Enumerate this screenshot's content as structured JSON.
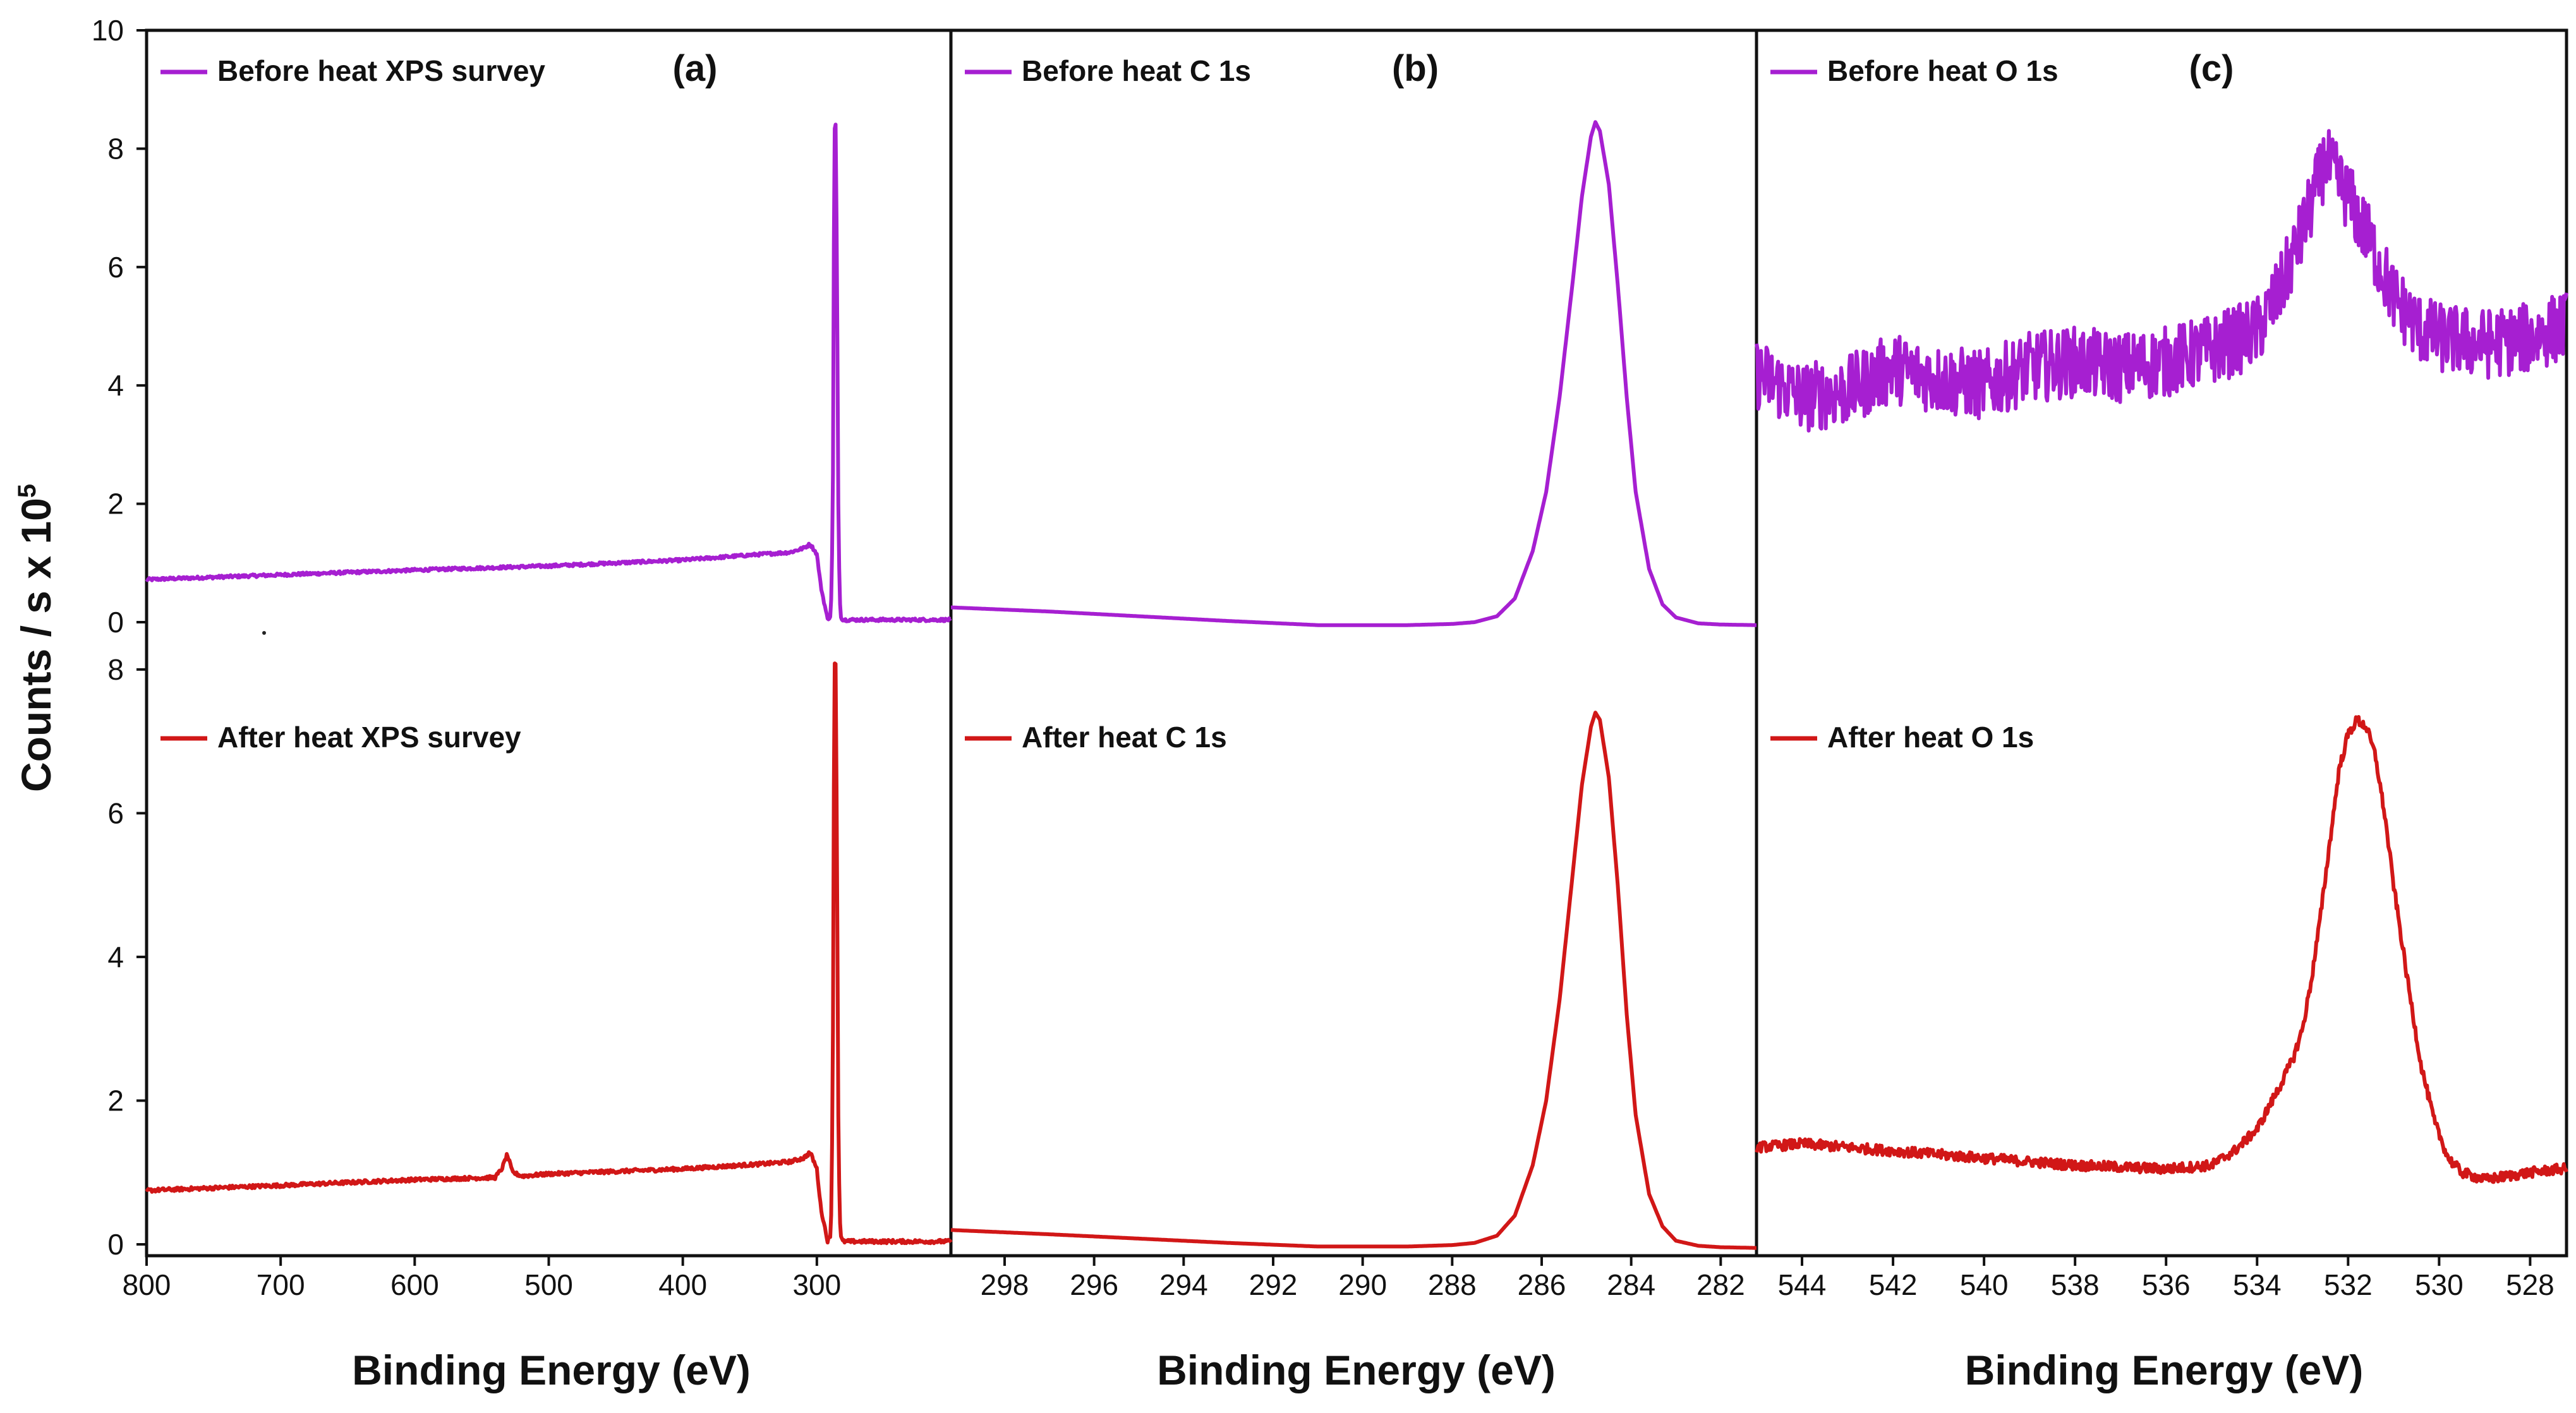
{
  "figure": {
    "ylabel": "Counts / s x 10",
    "ylabel_exponent": "5",
    "colors": {
      "before": "#A61FD1",
      "after": "#D11717",
      "axis": "#111111"
    }
  },
  "chart_data": [
    {
      "id": "a",
      "type": "line",
      "panel_label": "(a)",
      "xlabel": "Binding Energy (eV)",
      "xlim": [
        800,
        200
      ],
      "xticks": [
        800,
        700,
        600,
        500,
        400,
        300
      ],
      "top": {
        "name": "Before heat XPS survey",
        "ylim": [
          0,
          10
        ],
        "yticks": [
          0,
          2,
          4,
          6,
          8,
          10
        ],
        "noise": 0.025,
        "x": [
          800,
          700,
          600,
          500,
          400,
          340,
          320,
          310,
          305,
          300,
          297,
          292,
          290,
          289,
          288,
          287,
          286,
          285,
          284,
          283,
          282,
          281,
          280,
          270,
          250,
          200
        ],
        "y": [
          0.72,
          0.8,
          0.88,
          0.95,
          1.05,
          1.15,
          1.18,
          1.25,
          1.32,
          1.15,
          0.6,
          0.05,
          0.1,
          0.5,
          2.5,
          8.3,
          8.4,
          6.0,
          2.0,
          0.4,
          0.1,
          0.05,
          0.04,
          0.04,
          0.04,
          0.04
        ]
      },
      "bottom": {
        "name": "After heat XPS survey",
        "ylim": [
          0,
          8.5
        ],
        "yticks": [
          0,
          2,
          4,
          6,
          8
        ],
        "noise": 0.025,
        "x": [
          800,
          700,
          600,
          540,
          535,
          531,
          527,
          520,
          500,
          400,
          340,
          320,
          310,
          305,
          300,
          297,
          292,
          290,
          289,
          288,
          287,
          286,
          285,
          284,
          283,
          282,
          281,
          280,
          270,
          250,
          200
        ],
        "y": [
          0.75,
          0.82,
          0.9,
          0.93,
          1.05,
          1.25,
          1.0,
          0.95,
          0.98,
          1.05,
          1.12,
          1.15,
          1.2,
          1.28,
          1.05,
          0.5,
          0.05,
          0.1,
          0.6,
          3.0,
          8.05,
          8.1,
          5.5,
          1.8,
          0.4,
          0.1,
          0.05,
          0.04,
          0.04,
          0.04,
          0.04
        ]
      }
    },
    {
      "id": "b",
      "type": "line",
      "panel_label": "(b)",
      "xlabel": "Binding Energy (eV)",
      "xlim": [
        299.2,
        281.2
      ],
      "xticks": [
        298,
        296,
        294,
        292,
        290,
        288,
        286,
        284,
        282
      ],
      "top": {
        "name": "Before heat C 1s",
        "ylim": [
          0,
          10
        ],
        "noise": 0.0,
        "x": [
          299.2,
          297,
          295,
          293,
          291,
          289,
          288,
          287.5,
          287,
          286.6,
          286.2,
          285.9,
          285.6,
          285.3,
          285.1,
          284.9,
          284.8,
          284.7,
          284.5,
          284.3,
          284.1,
          283.9,
          283.6,
          283.3,
          283,
          282.5,
          282,
          281.2
        ],
        "y": [
          0.25,
          0.18,
          0.1,
          0.02,
          -0.05,
          -0.05,
          -0.03,
          0.0,
          0.1,
          0.4,
          1.2,
          2.2,
          3.8,
          5.8,
          7.2,
          8.2,
          8.45,
          8.3,
          7.4,
          5.7,
          3.8,
          2.2,
          0.9,
          0.3,
          0.08,
          -0.02,
          -0.04,
          -0.05
        ]
      },
      "bottom": {
        "name": "After heat C 1s",
        "ylim": [
          0,
          8.5
        ],
        "noise": 0.0,
        "x": [
          299.2,
          297,
          295,
          293,
          291,
          289,
          288,
          287.5,
          287,
          286.6,
          286.2,
          285.9,
          285.6,
          285.3,
          285.1,
          284.9,
          284.8,
          284.7,
          284.5,
          284.3,
          284.1,
          283.9,
          283.6,
          283.3,
          283,
          282.5,
          282,
          281.2
        ],
        "y": [
          0.2,
          0.14,
          0.08,
          0.02,
          -0.03,
          -0.03,
          -0.01,
          0.02,
          0.12,
          0.4,
          1.1,
          2.0,
          3.4,
          5.2,
          6.4,
          7.2,
          7.4,
          7.3,
          6.5,
          5.0,
          3.2,
          1.8,
          0.7,
          0.25,
          0.05,
          -0.02,
          -0.04,
          -0.05
        ]
      }
    },
    {
      "id": "c",
      "type": "line",
      "panel_label": "(c)",
      "xlabel": "Binding Energy (eV)",
      "xlim": [
        545,
        527.2
      ],
      "xticks": [
        544,
        542,
        540,
        538,
        536,
        534,
        532,
        530,
        528
      ],
      "top": {
        "name": "Before heat O 1s",
        "ylim": [
          0,
          10
        ],
        "noise": 0.6,
        "x": [
          545,
          544,
          543,
          542,
          541,
          540,
          539,
          538,
          537,
          536,
          535,
          534,
          533.5,
          533,
          532.5,
          532,
          531.5,
          531,
          530.5,
          530,
          529,
          528,
          527.3
        ],
        "y": [
          4.2,
          3.8,
          3.9,
          4.3,
          4.1,
          4.0,
          4.3,
          4.4,
          4.3,
          4.4,
          4.6,
          4.9,
          5.6,
          6.6,
          7.8,
          7.2,
          6.4,
          5.5,
          5.0,
          4.8,
          4.7,
          4.8,
          5.0
        ]
      },
      "bottom": {
        "name": "After heat O 1s",
        "ylim": [
          0,
          8.5
        ],
        "noise": 0.07,
        "x": [
          545,
          544,
          542,
          540,
          538,
          536,
          535,
          534.5,
          534,
          533.5,
          533.2,
          533,
          532.8,
          532.6,
          532.4,
          532.2,
          532,
          531.8,
          531.6,
          531.4,
          531.2,
          531,
          530.7,
          530.4,
          530.1,
          529.8,
          529.5,
          529,
          528,
          527.3
        ],
        "y": [
          1.35,
          1.4,
          1.3,
          1.2,
          1.1,
          1.05,
          1.1,
          1.3,
          1.6,
          2.2,
          2.6,
          3.0,
          3.7,
          4.6,
          5.6,
          6.6,
          7.1,
          7.3,
          7.2,
          6.8,
          6.0,
          5.0,
          3.7,
          2.5,
          1.7,
          1.2,
          1.0,
          0.9,
          1.0,
          1.05
        ]
      }
    }
  ]
}
